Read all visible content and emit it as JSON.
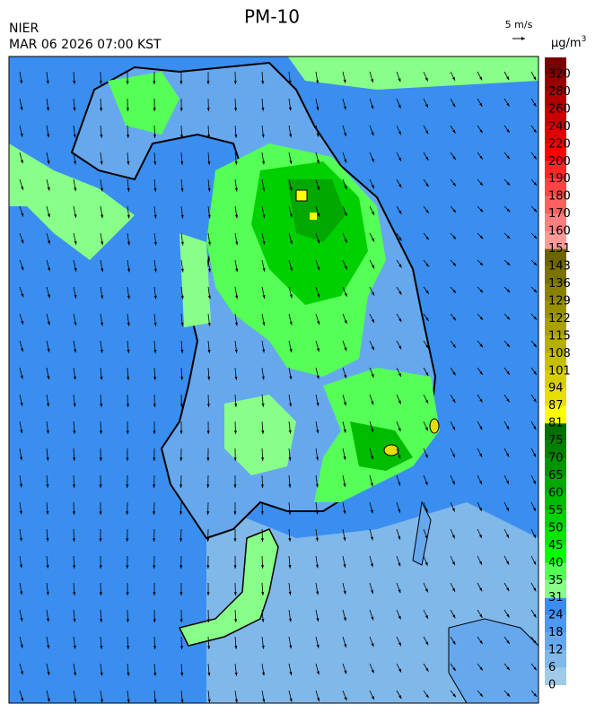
{
  "header": {
    "title": "PM-10",
    "agency": "NIER",
    "timestamp": "MAR 06 2026 07:00 KST"
  },
  "wind_legend": {
    "label": "5 m/s"
  },
  "legend": {
    "unit": "μg/m",
    "unit_power": "3",
    "labels": [
      320,
      280,
      260,
      240,
      220,
      200,
      190,
      180,
      170,
      160,
      151,
      143,
      136,
      129,
      122,
      115,
      108,
      101,
      94,
      87,
      81,
      75,
      70,
      65,
      60,
      55,
      50,
      45,
      40,
      35,
      31,
      24,
      18,
      12,
      6,
      0
    ],
    "colors": [
      "#7a0000",
      "#960000",
      "#b00000",
      "#c80000",
      "#e00000",
      "#ff0000",
      "#ff2626",
      "#ff4444",
      "#ff6060",
      "#ff7f7f",
      "#ff9a9a",
      "#6b6400",
      "#7a7300",
      "#898200",
      "#989000",
      "#a8a000",
      "#b7af00",
      "#c6be00",
      "#d6ce00",
      "#e6de00",
      "#ffff00",
      "#007000",
      "#008000",
      "#009400",
      "#00a800",
      "#00bc00",
      "#00d000",
      "#00e400",
      "#00ff00",
      "#55ff55",
      "#88ff88",
      "#3a8ef0",
      "#4d99f0",
      "#66a8ee",
      "#80b8ea",
      "#a0cbe8"
    ]
  }
}
